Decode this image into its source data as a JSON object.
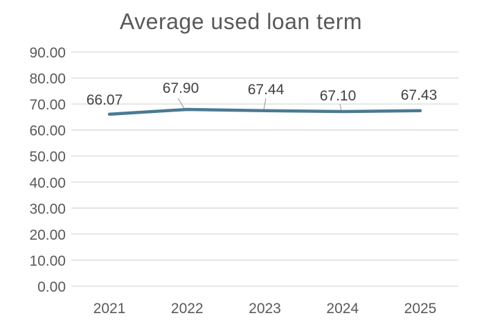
{
  "chart_data": {
    "type": "line",
    "title": "Average used loan term",
    "categories": [
      "2021",
      "2022",
      "2023",
      "2024",
      "2025"
    ],
    "series": [
      {
        "name": "Average used loan term",
        "values": [
          66.07,
          67.9,
          67.44,
          67.1,
          67.43
        ]
      }
    ],
    "data_labels": [
      "66.07",
      "67.90",
      "67.44",
      "67.10",
      "67.43"
    ],
    "xlabel": "",
    "ylabel": "",
    "ylim": [
      0,
      90
    ],
    "yticks": [
      0,
      10,
      20,
      30,
      40,
      50,
      60,
      70,
      80,
      90
    ],
    "ytick_labels": [
      "0.00",
      "10.00",
      "20.00",
      "30.00",
      "40.00",
      "50.00",
      "60.00",
      "70.00",
      "80.00",
      "90.00"
    ],
    "grid": "horizontal",
    "legend_position": "none",
    "colors": {
      "line": "#4a7a94",
      "gridline": "#d9d9d9",
      "axis_text": "#595959",
      "title_text": "#595959",
      "data_label_text": "#404040",
      "leader_line": "#a6a6a6",
      "background": "#ffffff"
    }
  }
}
